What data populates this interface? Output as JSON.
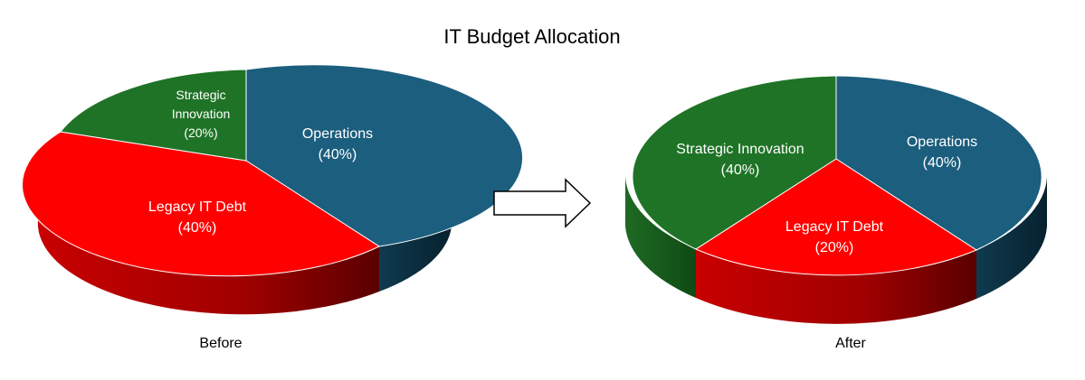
{
  "chart_data": {
    "type": "pie",
    "title": "IT Budget Allocation",
    "charts": [
      {
        "caption": "Before",
        "slices": [
          {
            "label": "Operations",
            "pct_label": "(40%)",
            "value": 40,
            "color": "#1b5e7e"
          },
          {
            "label": "Legacy IT Debt",
            "pct_label": "(40%)",
            "value": 40,
            "color": "#fe0000"
          },
          {
            "label": "Strategic Innovation",
            "pct_label": "(20%)",
            "value": 20,
            "color": "#1f7326"
          }
        ]
      },
      {
        "caption": "After",
        "slices": [
          {
            "label": "Operations",
            "pct_label": "(40%)",
            "value": 40,
            "color": "#1b5e7e"
          },
          {
            "label": "Legacy IT Debt",
            "pct_label": "(20%)",
            "value": 20,
            "color": "#fe0000"
          },
          {
            "label": "Strategic Innovation",
            "pct_label": "(40%)",
            "value": 40,
            "color": "#1f7326"
          }
        ]
      }
    ],
    "arrow_icon": "right-arrow-icon"
  }
}
